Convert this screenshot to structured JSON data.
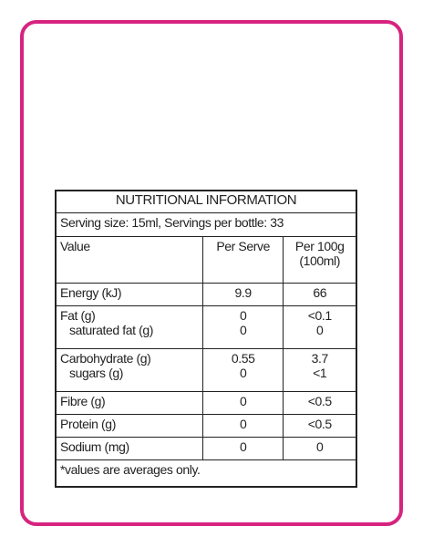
{
  "label": {
    "title": "NUTRITIONAL INFORMATION",
    "serving": "Serving size: 15ml, Servings per bottle: 33",
    "headers": [
      [
        "Value"
      ],
      [
        "Per Serve"
      ],
      [
        "Per 100g",
        "(100ml)"
      ]
    ],
    "rows": [
      [
        [
          "Energy (kJ)"
        ],
        [
          "9.9"
        ],
        [
          "66"
        ]
      ],
      [
        [
          "Fat (g)",
          "saturated fat (g)"
        ],
        [
          "0",
          "0"
        ],
        [
          "<0.1",
          "0"
        ]
      ],
      [
        [
          "Carbohydrate (g)",
          "sugars (g)"
        ],
        [
          "0.55",
          "0"
        ],
        [
          "3.7",
          "<1"
        ]
      ],
      [
        [
          "Fibre (g)"
        ],
        [
          "0"
        ],
        [
          "<0.5"
        ]
      ],
      [
        [
          "Protein (g)"
        ],
        [
          "0"
        ],
        [
          "<0.5"
        ]
      ],
      [
        [
          "Sodium (mg)"
        ],
        [
          "0"
        ],
        [
          "0"
        ]
      ]
    ],
    "footnote": "*values are averages only."
  }
}
